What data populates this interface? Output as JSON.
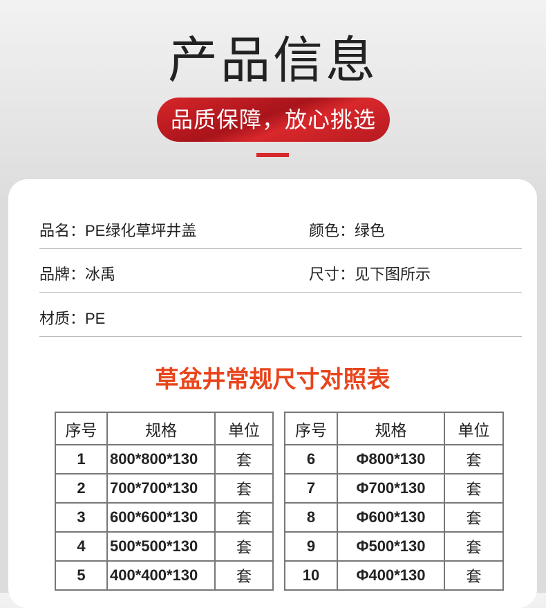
{
  "header": {
    "title": "产品信息",
    "badge": "品质保障，放心挑选",
    "accent": "#d7282c"
  },
  "info": [
    {
      "label": "品名：PE绿化草坪井盖"
    },
    {
      "label": "颜色：绿色"
    },
    {
      "label": "品牌：冰禹"
    },
    {
      "label": "尺寸：见下图所示"
    },
    {
      "label": "材质：PE"
    }
  ],
  "table_title": "草盆井常规尺寸对照表",
  "columns": [
    "序号",
    "规格",
    "单位"
  ],
  "left_rows": [
    [
      "1",
      "800*800*130",
      "套"
    ],
    [
      "2",
      "700*700*130",
      "套"
    ],
    [
      "3",
      "600*600*130",
      "套"
    ],
    [
      "4",
      "500*500*130",
      "套"
    ],
    [
      "5",
      "400*400*130",
      "套"
    ]
  ],
  "right_rows": [
    [
      "6",
      "Φ800*130",
      "套"
    ],
    [
      "7",
      "Φ700*130",
      "套"
    ],
    [
      "8",
      "Φ600*130",
      "套"
    ],
    [
      "9",
      "Φ500*130",
      "套"
    ],
    [
      "10",
      "Φ400*130",
      "套"
    ]
  ]
}
